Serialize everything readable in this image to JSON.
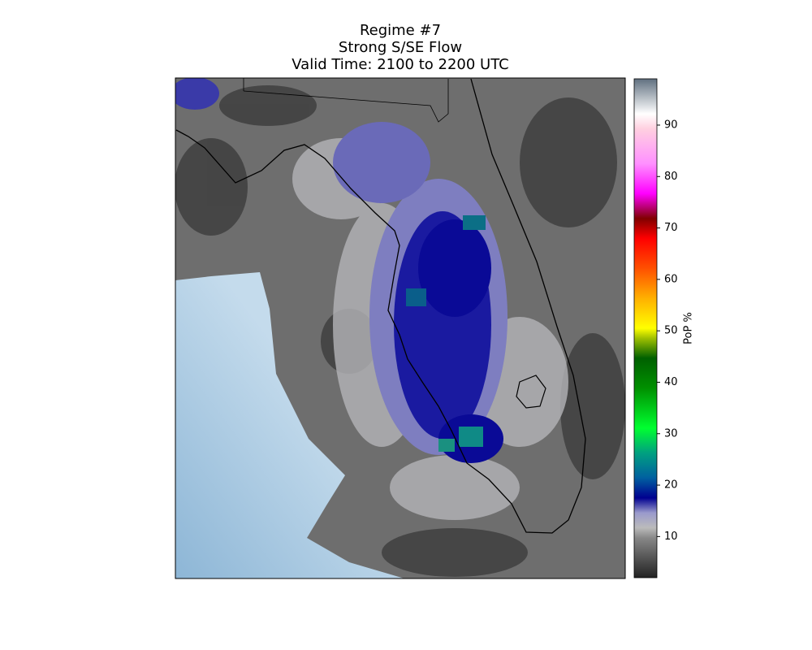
{
  "chart_data": {
    "type": "map",
    "title_lines": [
      "Regime #7",
      "Strong S/SE Flow",
      "Valid Time: 2100 to 2200 UTC"
    ],
    "colorbar": {
      "label": "PoP %",
      "lim": [
        2,
        99
      ],
      "ticks": [
        10,
        20,
        30,
        40,
        50,
        60,
        70,
        80,
        90
      ]
    }
  }
}
